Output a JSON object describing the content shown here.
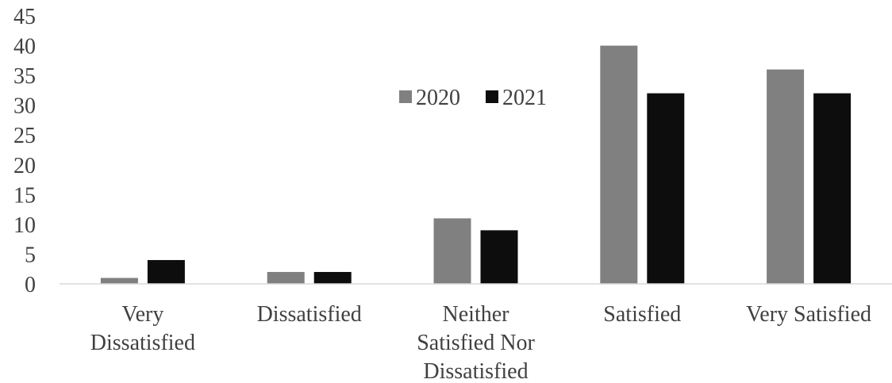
{
  "chart_data": {
    "type": "bar",
    "categories": [
      [
        "Very",
        "Dissatisfied"
      ],
      [
        "Dissatisfied"
      ],
      [
        "Neither",
        "Satisfied Nor",
        "Dissatisfied"
      ],
      [
        "Satisfied"
      ],
      [
        "Very Satisfied"
      ]
    ],
    "series": [
      {
        "name": "2020",
        "values": [
          1,
          2,
          11,
          40,
          36
        ],
        "color": "#808080"
      },
      {
        "name": "2021",
        "values": [
          4,
          2,
          9,
          32,
          32
        ],
        "color": "#0d0d0d"
      }
    ],
    "y_ticks": [
      "0",
      "5",
      "10",
      "15",
      "20",
      "25",
      "30",
      "35",
      "40",
      "45"
    ],
    "ylim": [
      0,
      45
    ],
    "title": "",
    "xlabel": "",
    "ylabel": "",
    "grid": false,
    "legend_position": "top-center",
    "axis_color": "#d9d9d9"
  }
}
